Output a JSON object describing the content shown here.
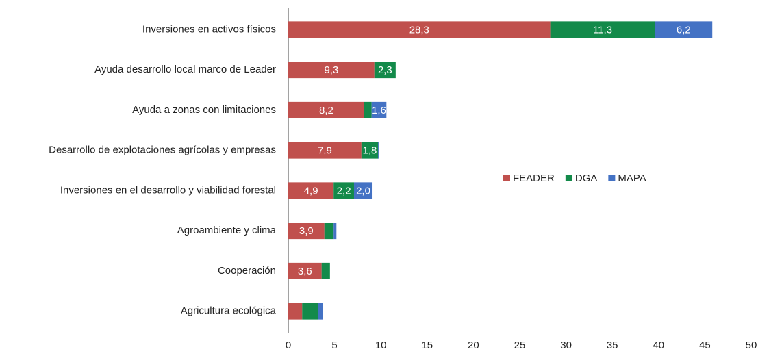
{
  "chart_data": {
    "type": "stacked_bar_horizontal",
    "categories": [
      "Inversiones en activos físicos",
      "Ayuda desarrollo local marco de Leader",
      "Ayuda a zonas con limitaciones",
      "Desarrollo de explotaciones agrícolas y empresas",
      "Inversiones en el desarrollo y viabilidad forestal",
      "Agroambiente y clima",
      "Cooperación",
      "Agricultura ecológica"
    ],
    "series": [
      {
        "name": "FEADER",
        "color": "#c0504d",
        "values": [
          28.3,
          9.3,
          8.2,
          7.9,
          4.9,
          3.9,
          3.6,
          1.5
        ],
        "value_labels": [
          "28,3",
          "9,3",
          "8,2",
          "7,9",
          "4,9",
          "3,9",
          "3,6",
          null
        ]
      },
      {
        "name": "DGA",
        "color": "#138a4a",
        "values": [
          11.3,
          2.3,
          0.8,
          1.8,
          2.2,
          1.0,
          0.9,
          1.7
        ],
        "value_labels": [
          "11,3",
          "2,3",
          null,
          "1,8",
          "2,2",
          null,
          null,
          null
        ]
      },
      {
        "name": "MAPA",
        "color": "#4472c4",
        "values": [
          6.2,
          0,
          1.6,
          0.1,
          2.0,
          0.3,
          0,
          0.5
        ],
        "value_labels": [
          "6,2",
          null,
          "1,6",
          null,
          "2,0",
          null,
          null,
          null
        ]
      }
    ],
    "xlim": [
      0,
      50
    ],
    "xticks": [
      0,
      5,
      10,
      15,
      20,
      25,
      30,
      35,
      40,
      45,
      50
    ],
    "legend": "center"
  }
}
